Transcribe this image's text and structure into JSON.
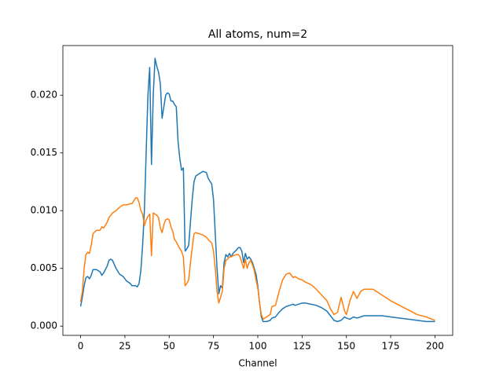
{
  "chart_data": {
    "type": "line",
    "title": "All atoms, num=2",
    "x_label": "Channel",
    "x": [
      0,
      1,
      2,
      3,
      4,
      5,
      6,
      7,
      9,
      11,
      12,
      13,
      15,
      16,
      17,
      18,
      20,
      22,
      24,
      26,
      28,
      29,
      31,
      32,
      33,
      34,
      35,
      36,
      37,
      38,
      39,
      40,
      41,
      42,
      43,
      44,
      45,
      46,
      47,
      48,
      49,
      50,
      51,
      52,
      53,
      54,
      55,
      56,
      57,
      58,
      59,
      60,
      61,
      62,
      63,
      64,
      65,
      67,
      69,
      71,
      72,
      74,
      75,
      76,
      77,
      78,
      79,
      80,
      81,
      82,
      83,
      84,
      85,
      86,
      88,
      89,
      90,
      91,
      92,
      93,
      94,
      95,
      96,
      97,
      98,
      99,
      100,
      101,
      102,
      103,
      105,
      107,
      108,
      110,
      112,
      114,
      116,
      118,
      120,
      121,
      123,
      125,
      127,
      130,
      133,
      136,
      139,
      141,
      143,
      145,
      147,
      149,
      150,
      152,
      154,
      156,
      158,
      160,
      165,
      170,
      175,
      180,
      185,
      190,
      195,
      200
    ],
    "series": [
      {
        "color": "#1f77b4",
        "values": [
          0.0017,
          0.0025,
          0.0035,
          0.0042,
          0.0043,
          0.0041,
          0.0044,
          0.0049,
          0.0049,
          0.0047,
          0.0044,
          0.0046,
          0.0052,
          0.0057,
          0.0058,
          0.0057,
          0.005,
          0.0045,
          0.0043,
          0.0039,
          0.0037,
          0.0035,
          0.0035,
          0.0034,
          0.0037,
          0.0048,
          0.007,
          0.01,
          0.015,
          0.02,
          0.0224,
          0.014,
          0.02,
          0.0232,
          0.0225,
          0.022,
          0.021,
          0.018,
          0.019,
          0.02,
          0.0202,
          0.0201,
          0.0195,
          0.0195,
          0.0192,
          0.019,
          0.016,
          0.0145,
          0.0135,
          0.0137,
          0.0065,
          0.0067,
          0.007,
          0.009,
          0.011,
          0.0125,
          0.013,
          0.0132,
          0.0134,
          0.0133,
          0.0128,
          0.0123,
          0.011,
          0.008,
          0.005,
          0.0028,
          0.0035,
          0.0033,
          0.0055,
          0.0062,
          0.006,
          0.0063,
          0.006,
          0.0063,
          0.0066,
          0.0068,
          0.0068,
          0.0065,
          0.0055,
          0.0063,
          0.0058,
          0.006,
          0.0058,
          0.0055,
          0.005,
          0.0045,
          0.0035,
          0.002,
          0.0008,
          0.0004,
          0.0004,
          0.0005,
          0.0007,
          0.0008,
          0.0012,
          0.0015,
          0.0017,
          0.0018,
          0.0019,
          0.0018,
          0.0019,
          0.002,
          0.002,
          0.0019,
          0.0018,
          0.0016,
          0.0013,
          0.0009,
          0.0005,
          0.0004,
          0.0005,
          0.0008,
          0.0007,
          0.0006,
          0.0008,
          0.0007,
          0.0008,
          0.0009,
          0.0009,
          0.0009,
          0.0008,
          0.0007,
          0.0006,
          0.0005,
          0.0004,
          0.0004
        ]
      },
      {
        "color": "#ff7f0e",
        "values": [
          0.0021,
          0.003,
          0.005,
          0.0062,
          0.0064,
          0.0063,
          0.007,
          0.008,
          0.0083,
          0.0083,
          0.0086,
          0.0085,
          0.009,
          0.0094,
          0.0096,
          0.0098,
          0.01,
          0.0103,
          0.0105,
          0.0105,
          0.0106,
          0.0106,
          0.0111,
          0.0111,
          0.0107,
          0.01,
          0.0097,
          0.0087,
          0.0092,
          0.0095,
          0.0097,
          0.0061,
          0.0098,
          0.0097,
          0.0096,
          0.0094,
          0.0085,
          0.0081,
          0.0088,
          0.0092,
          0.0093,
          0.0092,
          0.0086,
          0.0082,
          0.0075,
          0.0073,
          0.007,
          0.0067,
          0.0065,
          0.006,
          0.0035,
          0.0037,
          0.004,
          0.0055,
          0.0068,
          0.008,
          0.0081,
          0.008,
          0.0079,
          0.0077,
          0.0075,
          0.0072,
          0.0065,
          0.005,
          0.003,
          0.002,
          0.0025,
          0.003,
          0.005,
          0.0057,
          0.0058,
          0.006,
          0.006,
          0.0061,
          0.0062,
          0.0062,
          0.006,
          0.0055,
          0.005,
          0.0058,
          0.005,
          0.0055,
          0.0057,
          0.0053,
          0.0048,
          0.004,
          0.0033,
          0.002,
          0.001,
          0.0006,
          0.0008,
          0.001,
          0.0017,
          0.0018,
          0.003,
          0.004,
          0.0045,
          0.0046,
          0.0042,
          0.0043,
          0.0041,
          0.004,
          0.0038,
          0.0036,
          0.0032,
          0.0027,
          0.0022,
          0.0015,
          0.001,
          0.0012,
          0.0025,
          0.0013,
          0.001,
          0.0022,
          0.003,
          0.0024,
          0.003,
          0.0032,
          0.0032,
          0.0027,
          0.0022,
          0.0018,
          0.0014,
          0.001,
          0.0008,
          0.0005
        ]
      }
    ],
    "xlim": [
      -10,
      210
    ],
    "xticks": [
      0,
      25,
      50,
      75,
      100,
      125,
      150,
      175,
      200
    ],
    "ylim": [
      -0.0008,
      0.0243
    ],
    "yticks": [
      {
        "value": 0,
        "label": "0.000"
      },
      {
        "value": 0.005,
        "label": "0.005"
      },
      {
        "value": 0.01,
        "label": "0.010"
      },
      {
        "value": 0.015,
        "label": "0.015"
      },
      {
        "value": 0.02,
        "label": "0.020"
      }
    ]
  }
}
